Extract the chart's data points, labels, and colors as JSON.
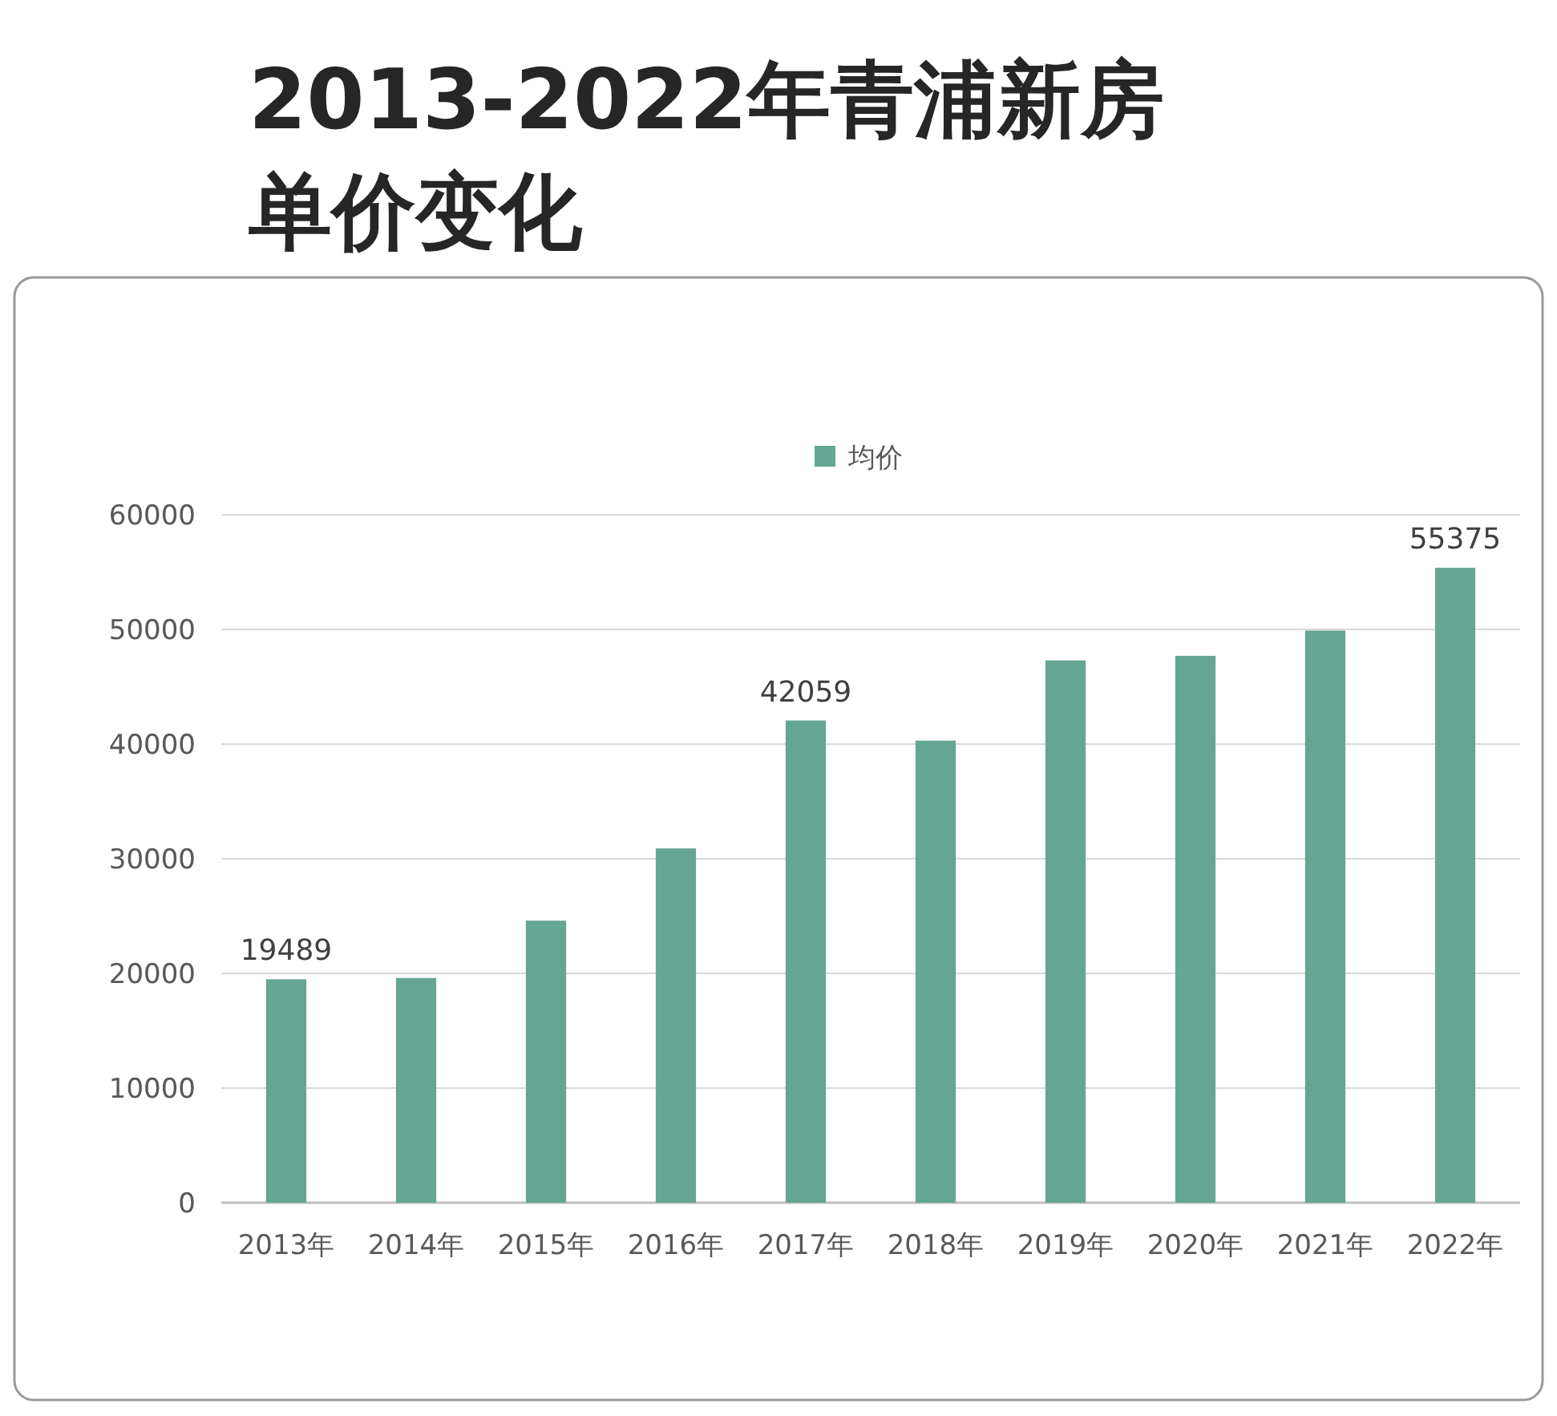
{
  "chart_data": {
    "type": "bar",
    "title": "2013-2022年青浦新房单价变化",
    "categories": [
      "2013年",
      "2014年",
      "2015年",
      "2016年",
      "2017年",
      "2018年",
      "2019年",
      "2020年",
      "2021年",
      "2022年"
    ],
    "series": [
      {
        "name": "均价",
        "color": "#65a593",
        "values": [
          19489,
          19600,
          24600,
          30900,
          42059,
          40300,
          47300,
          47700,
          49900,
          55375
        ],
        "value_labels": [
          "19489",
          null,
          null,
          null,
          "42059",
          null,
          null,
          null,
          null,
          "55375"
        ]
      }
    ],
    "ylim": [
      0,
      60000
    ],
    "yticks": [
      0,
      10000,
      20000,
      30000,
      40000,
      50000,
      60000
    ],
    "grid": "y",
    "legend": "top"
  }
}
